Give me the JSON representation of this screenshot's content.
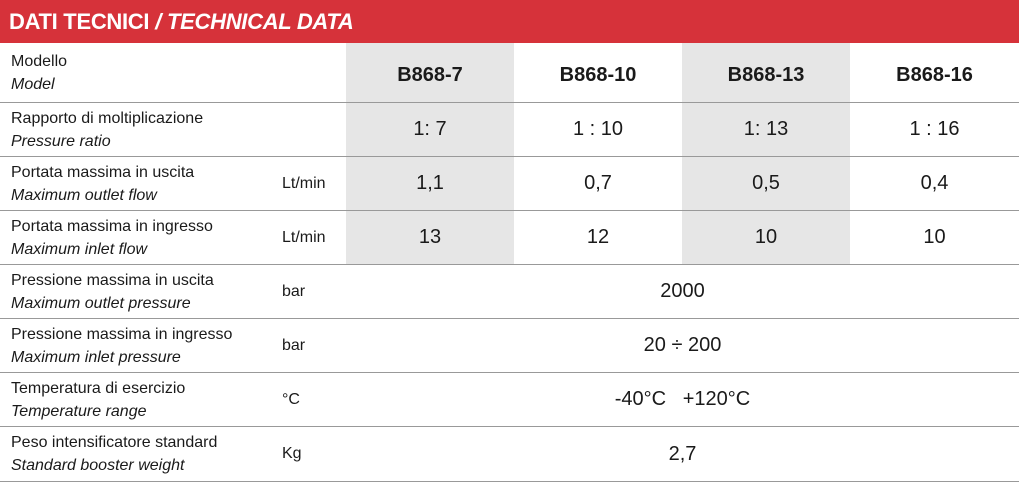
{
  "title": {
    "it": "DATI TECNICI",
    "sep": "/",
    "en": "TECHNICAL DATA"
  },
  "colors": {
    "header_bg": "#d6323a",
    "shaded_column": "#e6e6e6"
  },
  "models": [
    "B868-7",
    "B868-10",
    "B868-13",
    "B868-16"
  ],
  "rows": [
    {
      "label_it": "Modello",
      "label_en": "Model",
      "unit": ""
    },
    {
      "label_it": "Rapporto di moltiplicazione",
      "label_en": "Pressure ratio",
      "unit": "",
      "values": [
        "1: 7",
        "1 : 10",
        "1: 13",
        "1 : 16"
      ]
    },
    {
      "label_it": "Portata massima in uscita",
      "label_en": "Maximum outlet flow",
      "unit": "Lt/min",
      "values": [
        "1,1",
        "0,7",
        "0,5",
        "0,4"
      ]
    },
    {
      "label_it": "Portata massima in ingresso",
      "label_en": "Maximum inlet flow",
      "unit": "Lt/min",
      "values": [
        "13",
        "12",
        "10",
        "10"
      ]
    },
    {
      "label_it": "Pressione massima in uscita",
      "label_en": "Maximum outlet pressure",
      "unit": "bar",
      "value": "2000"
    },
    {
      "label_it": "Pressione massima in ingresso",
      "label_en": "Maximum inlet pressure",
      "unit": "bar",
      "value": "20 ÷ 200"
    },
    {
      "label_it": "Temperatura di esercizio",
      "label_en": "Temperature range",
      "unit": "°C",
      "value": "-40°C   +120°C"
    },
    {
      "label_it": "Peso intensificatore standard",
      "label_en": "Standard booster weight",
      "unit": "Kg",
      "value": "2,7"
    }
  ]
}
